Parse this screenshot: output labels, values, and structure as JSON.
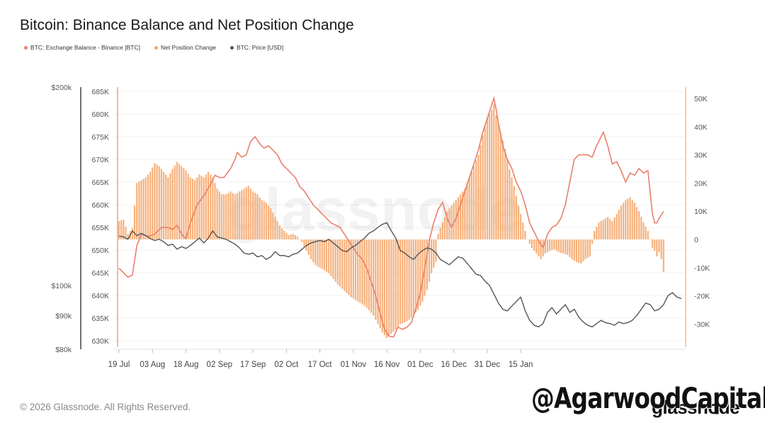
{
  "chart_data": {
    "title": "Bitcoin: Binance Balance and Net Position Change",
    "legend": [
      {
        "label": "BTC: Exchange Balance - Binance [BTC]",
        "color": "#e8806a"
      },
      {
        "label": "Net Position Change",
        "color": "#f5a86e"
      },
      {
        "label": "BTC: Price [USD]",
        "color": "#555555"
      }
    ],
    "x_ticks": [
      "19 Jul",
      "03 Aug",
      "18 Aug",
      "02 Sep",
      "17 Sep",
      "02 Oct",
      "17 Oct",
      "01 Nov",
      "16 Nov",
      "01 Dec",
      "16 Dec",
      "31 Dec",
      "15 Jan"
    ],
    "y_balance_ticks": [
      "630K",
      "635K",
      "640K",
      "645K",
      "650K",
      "655K",
      "660K",
      "665K",
      "670K",
      "675K",
      "680K",
      "685K"
    ],
    "y_balance_range": [
      630000,
      685000
    ],
    "y_net_ticks": [
      "-30K",
      "-20K",
      "-10K",
      "0",
      "10K",
      "20K",
      "30K",
      "40K",
      "50K"
    ],
    "y_net_range": [
      -37500,
      53000
    ],
    "y_price_ticks": [
      "$80k",
      "$90k",
      "$100k",
      "$200k"
    ],
    "y_price_range_log": [
      80000,
      200000
    ],
    "balance_anchors": [
      [
        0,
        646000
      ],
      [
        2,
        645000
      ],
      [
        4,
        644000
      ],
      [
        6,
        644500
      ],
      [
        8,
        651000
      ],
      [
        10,
        653500
      ],
      [
        13,
        653000
      ],
      [
        16,
        653500
      ],
      [
        19,
        655000
      ],
      [
        22,
        655000
      ],
      [
        24,
        654500
      ],
      [
        26,
        655500
      ],
      [
        28,
        653500
      ],
      [
        30,
        652500
      ],
      [
        32,
        656000
      ],
      [
        35,
        660000
      ],
      [
        38,
        662000
      ],
      [
        41,
        664500
      ],
      [
        43,
        666500
      ],
      [
        45,
        666000
      ],
      [
        47,
        666000
      ],
      [
        50,
        668000
      ],
      [
        52,
        670000
      ],
      [
        53,
        671500
      ],
      [
        55,
        670500
      ],
      [
        57,
        671000
      ],
      [
        59,
        674000
      ],
      [
        61,
        675000
      ],
      [
        63,
        673500
      ],
      [
        65,
        672500
      ],
      [
        67,
        673000
      ],
      [
        69,
        672000
      ],
      [
        71,
        671000
      ],
      [
        73,
        669000
      ],
      [
        75,
        668000
      ],
      [
        77,
        667000
      ],
      [
        79,
        666000
      ],
      [
        81,
        664000
      ],
      [
        83,
        663000
      ],
      [
        85,
        661500
      ],
      [
        87,
        660000
      ],
      [
        89,
        659000
      ],
      [
        91,
        658000
      ],
      [
        93,
        657000
      ],
      [
        95,
        656000
      ],
      [
        97,
        655500
      ],
      [
        99,
        655000
      ],
      [
        101,
        653500
      ],
      [
        103,
        652000
      ],
      [
        105,
        650500
      ],
      [
        107,
        649000
      ],
      [
        109,
        648000
      ],
      [
        111,
        646000
      ],
      [
        113,
        643000
      ],
      [
        115,
        640000
      ],
      [
        117,
        636000
      ],
      [
        119,
        632500
      ],
      [
        121,
        631000
      ],
      [
        123,
        630800
      ],
      [
        125,
        633000
      ],
      [
        127,
        632500
      ],
      [
        129,
        633000
      ],
      [
        131,
        634000
      ],
      [
        133,
        637000
      ],
      [
        135,
        640500
      ],
      [
        137,
        646000
      ],
      [
        139,
        652000
      ],
      [
        141,
        656000
      ],
      [
        143,
        659000
      ],
      [
        145,
        660500
      ],
      [
        147,
        657000
      ],
      [
        149,
        655000
      ],
      [
        151,
        657000
      ],
      [
        153,
        660000
      ],
      [
        155,
        663000
      ],
      [
        157,
        666000
      ],
      [
        159,
        669000
      ],
      [
        161,
        672000
      ],
      [
        163,
        676000
      ],
      [
        165,
        679000
      ],
      [
        167,
        682000
      ],
      [
        168,
        683500
      ],
      [
        169,
        681000
      ],
      [
        170,
        678000
      ],
      [
        172,
        673000
      ],
      [
        174,
        670000
      ],
      [
        176,
        668000
      ],
      [
        178,
        665000
      ],
      [
        180,
        663000
      ],
      [
        182,
        660000
      ],
      [
        184,
        656000
      ],
      [
        186,
        654000
      ],
      [
        188,
        652000
      ],
      [
        190,
        650500
      ],
      [
        192,
        653500
      ],
      [
        194,
        655000
      ],
      [
        196,
        655500
      ],
      [
        198,
        657000
      ],
      [
        200,
        660000
      ],
      [
        202,
        665000
      ],
      [
        204,
        670000
      ],
      [
        206,
        671000
      ],
      [
        208,
        671000
      ],
      [
        210,
        671000
      ],
      [
        212,
        670500
      ],
      [
        214,
        673000
      ],
      [
        216,
        675000
      ],
      [
        217,
        676000
      ],
      [
        219,
        673000
      ],
      [
        221,
        669000
      ],
      [
        223,
        669500
      ],
      [
        225,
        667500
      ],
      [
        227,
        665000
      ],
      [
        229,
        667000
      ],
      [
        231,
        666500
      ],
      [
        233,
        668000
      ],
      [
        235,
        667000
      ],
      [
        237,
        667500
      ],
      [
        239,
        658000
      ],
      [
        240,
        656000
      ],
      [
        241,
        656000
      ],
      [
        242,
        657000
      ],
      [
        244,
        658500
      ]
    ],
    "net_anchors": [
      [
        0,
        6500
      ],
      [
        2,
        7000
      ],
      [
        4,
        2000
      ],
      [
        6,
        4000
      ],
      [
        8,
        20000
      ],
      [
        10,
        21000
      ],
      [
        12,
        22000
      ],
      [
        14,
        24000
      ],
      [
        16,
        27000
      ],
      [
        18,
        26000
      ],
      [
        20,
        24000
      ],
      [
        22,
        22000
      ],
      [
        24,
        25000
      ],
      [
        26,
        27500
      ],
      [
        28,
        26000
      ],
      [
        30,
        24500
      ],
      [
        32,
        22000
      ],
      [
        34,
        21000
      ],
      [
        36,
        23000
      ],
      [
        38,
        22000
      ],
      [
        40,
        24000
      ],
      [
        42,
        22000
      ],
      [
        44,
        18000
      ],
      [
        46,
        16000
      ],
      [
        48,
        16000
      ],
      [
        50,
        17000
      ],
      [
        52,
        16000
      ],
      [
        54,
        17000
      ],
      [
        56,
        18000
      ],
      [
        58,
        19000
      ],
      [
        60,
        17000
      ],
      [
        62,
        16000
      ],
      [
        64,
        14000
      ],
      [
        66,
        13000
      ],
      [
        68,
        11000
      ],
      [
        70,
        8000
      ],
      [
        72,
        5000
      ],
      [
        74,
        3000
      ],
      [
        76,
        1500
      ],
      [
        78,
        2000
      ],
      [
        80,
        1000
      ],
      [
        82,
        -1000
      ],
      [
        84,
        -4000
      ],
      [
        86,
        -7000
      ],
      [
        88,
        -9000
      ],
      [
        90,
        -10000
      ],
      [
        92,
        -11000
      ],
      [
        94,
        -12000
      ],
      [
        96,
        -14000
      ],
      [
        98,
        -16000
      ],
      [
        100,
        -17500
      ],
      [
        102,
        -19000
      ],
      [
        104,
        -20500
      ],
      [
        106,
        -21500
      ],
      [
        108,
        -22500
      ],
      [
        110,
        -23500
      ],
      [
        112,
        -25000
      ],
      [
        114,
        -27000
      ],
      [
        116,
        -30000
      ],
      [
        118,
        -33000
      ],
      [
        120,
        -35000
      ],
      [
        122,
        -33500
      ],
      [
        124,
        -32000
      ],
      [
        126,
        -30000
      ],
      [
        128,
        -29500
      ],
      [
        130,
        -28500
      ],
      [
        132,
        -27000
      ],
      [
        134,
        -25000
      ],
      [
        136,
        -22000
      ],
      [
        138,
        -18000
      ],
      [
        140,
        -12000
      ],
      [
        142,
        -8000
      ],
      [
        143,
        2000
      ],
      [
        145,
        6000
      ],
      [
        147,
        10000
      ],
      [
        149,
        12000
      ],
      [
        151,
        14000
      ],
      [
        153,
        16000
      ],
      [
        155,
        18000
      ],
      [
        157,
        22000
      ],
      [
        159,
        26000
      ],
      [
        161,
        30000
      ],
      [
        163,
        37000
      ],
      [
        165,
        43000
      ],
      [
        167,
        46000
      ],
      [
        168,
        48000
      ],
      [
        169,
        44000
      ],
      [
        171,
        38000
      ],
      [
        173,
        32000
      ],
      [
        175,
        25000
      ],
      [
        177,
        19000
      ],
      [
        179,
        12000
      ],
      [
        181,
        6000
      ],
      [
        183,
        0
      ],
      [
        185,
        -3000
      ],
      [
        187,
        -5000
      ],
      [
        189,
        -7000
      ],
      [
        191,
        -5000
      ],
      [
        193,
        -4000
      ],
      [
        195,
        -3500
      ],
      [
        197,
        -4500
      ],
      [
        199,
        -5000
      ],
      [
        201,
        -5500
      ],
      [
        203,
        -7000
      ],
      [
        205,
        -8000
      ],
      [
        207,
        -8500
      ],
      [
        209,
        -7000
      ],
      [
        211,
        -6000
      ],
      [
        213,
        3000
      ],
      [
        215,
        6000
      ],
      [
        217,
        7000
      ],
      [
        219,
        8000
      ],
      [
        221,
        6500
      ],
      [
        223,
        9000
      ],
      [
        225,
        12000
      ],
      [
        227,
        14000
      ],
      [
        229,
        15000
      ],
      [
        231,
        13000
      ],
      [
        233,
        10000
      ],
      [
        235,
        6000
      ],
      [
        237,
        3000
      ],
      [
        239,
        -3000
      ],
      [
        240,
        -4000
      ],
      [
        241,
        -6000
      ],
      [
        242,
        -4500
      ],
      [
        243,
        -7000
      ],
      [
        244,
        -11500
      ]
    ],
    "price_anchors": [
      [
        0,
        118800
      ],
      [
        2,
        118500
      ],
      [
        4,
        117500
      ],
      [
        6,
        121000
      ],
      [
        8,
        119000
      ],
      [
        10,
        120000
      ],
      [
        12,
        119000
      ],
      [
        14,
        117800
      ],
      [
        16,
        117000
      ],
      [
        18,
        117500
      ],
      [
        20,
        116500
      ],
      [
        22,
        115000
      ],
      [
        24,
        115500
      ],
      [
        26,
        113500
      ],
      [
        28,
        114500
      ],
      [
        30,
        113800
      ],
      [
        32,
        115000
      ],
      [
        34,
        116500
      ],
      [
        36,
        118000
      ],
      [
        38,
        116000
      ],
      [
        40,
        118000
      ],
      [
        42,
        121000
      ],
      [
        44,
        118500
      ],
      [
        46,
        118000
      ],
      [
        48,
        117500
      ],
      [
        50,
        116500
      ],
      [
        52,
        115500
      ],
      [
        54,
        114000
      ],
      [
        56,
        112000
      ],
      [
        58,
        111500
      ],
      [
        60,
        112000
      ],
      [
        62,
        110500
      ],
      [
        64,
        111000
      ],
      [
        66,
        109500
      ],
      [
        68,
        110500
      ],
      [
        70,
        112500
      ],
      [
        72,
        111000
      ],
      [
        74,
        111000
      ],
      [
        76,
        110500
      ],
      [
        78,
        111500
      ],
      [
        80,
        112000
      ],
      [
        82,
        113500
      ],
      [
        84,
        115000
      ],
      [
        86,
        116000
      ],
      [
        88,
        116500
      ],
      [
        90,
        117000
      ],
      [
        92,
        116500
      ],
      [
        94,
        117500
      ],
      [
        96,
        116000
      ],
      [
        98,
        114500
      ],
      [
        100,
        113000
      ],
      [
        102,
        112500
      ],
      [
        104,
        114000
      ],
      [
        106,
        115000
      ],
      [
        108,
        116500
      ],
      [
        110,
        118000
      ],
      [
        112,
        120000
      ],
      [
        114,
        121000
      ],
      [
        116,
        122500
      ],
      [
        118,
        123800
      ],
      [
        120,
        124500
      ],
      [
        122,
        121000
      ],
      [
        124,
        118000
      ],
      [
        126,
        113000
      ],
      [
        128,
        112000
      ],
      [
        130,
        110500
      ],
      [
        132,
        109500
      ],
      [
        134,
        111500
      ],
      [
        136,
        113000
      ],
      [
        138,
        114000
      ],
      [
        140,
        113500
      ],
      [
        142,
        112000
      ],
      [
        144,
        109500
      ],
      [
        146,
        108500
      ],
      [
        148,
        107500
      ],
      [
        150,
        109000
      ],
      [
        152,
        110500
      ],
      [
        154,
        110000
      ],
      [
        156,
        108000
      ],
      [
        158,
        106000
      ],
      [
        160,
        104000
      ],
      [
        162,
        103500
      ],
      [
        164,
        101500
      ],
      [
        166,
        100000
      ],
      [
        168,
        97000
      ],
      [
        170,
        94000
      ],
      [
        172,
        92000
      ],
      [
        174,
        91500
      ],
      [
        176,
        93000
      ],
      [
        178,
        94500
      ],
      [
        180,
        96000
      ],
      [
        182,
        91500
      ],
      [
        184,
        88500
      ],
      [
        186,
        87000
      ],
      [
        188,
        86500
      ],
      [
        190,
        87500
      ],
      [
        192,
        91000
      ],
      [
        194,
        92500
      ],
      [
        196,
        90500
      ],
      [
        198,
        92000
      ],
      [
        200,
        93500
      ],
      [
        202,
        91000
      ],
      [
        204,
        92000
      ],
      [
        206,
        89500
      ],
      [
        208,
        88000
      ],
      [
        210,
        87000
      ],
      [
        212,
        86500
      ],
      [
        214,
        87500
      ],
      [
        216,
        88500
      ],
      [
        218,
        87800
      ],
      [
        220,
        87500
      ],
      [
        222,
        87000
      ],
      [
        224,
        88000
      ],
      [
        226,
        87500
      ],
      [
        228,
        87800
      ],
      [
        230,
        88500
      ],
      [
        232,
        90000
      ],
      [
        234,
        92000
      ],
      [
        236,
        94000
      ],
      [
        238,
        93500
      ],
      [
        240,
        91500
      ],
      [
        242,
        92000
      ],
      [
        244,
        93500
      ],
      [
        246,
        96500
      ],
      [
        248,
        97500
      ],
      [
        250,
        96000
      ],
      [
        252,
        95500
      ]
    ]
  },
  "footer": {
    "copyright": "© 2026 Glassnode. All Rights Reserved.",
    "brand": "glassnode",
    "stamp": "@AgarwoodCapital"
  },
  "watermark": "glassnode"
}
